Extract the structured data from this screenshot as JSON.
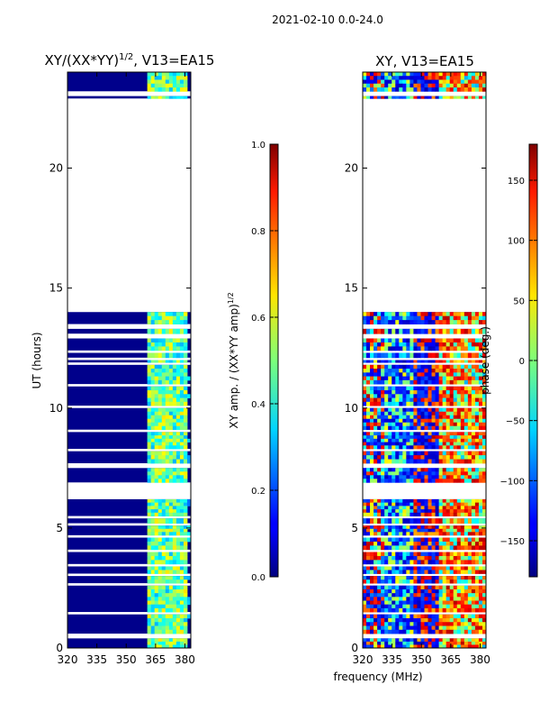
{
  "figure_title": "2021-02-10 0.0-24.0",
  "shared_xlabel": "frequency (MHz)",
  "chart_data": [
    {
      "type": "heatmap",
      "title": "XY/(XX*YY)",
      "title_superscript": "1/2",
      "title_suffix": ", V13=EA15",
      "xlabel": "",
      "ylabel": "UT (hours)",
      "xlim": [
        320,
        383
      ],
      "ylim": [
        0,
        24
      ],
      "x_ticks": [
        320,
        335,
        350,
        365,
        380
      ],
      "y_ticks": [
        0,
        5,
        10,
        15,
        20
      ],
      "colorbar": {
        "label": "XY amp. / (XX*YY amp)",
        "label_superscript": "1/2",
        "range": [
          0.0,
          1.0
        ],
        "ticks": [
          "0.0",
          "0.2",
          "0.4",
          "0.6",
          "0.8",
          "1.0"
        ]
      },
      "data_bands_hours": [
        [
          0.0,
          0.4
        ],
        [
          0.6,
          1.4
        ],
        [
          1.5,
          2.6
        ],
        [
          2.7,
          3.0
        ],
        [
          3.1,
          3.4
        ],
        [
          3.5,
          4.0
        ],
        [
          4.1,
          4.6
        ],
        [
          4.7,
          5.1
        ],
        [
          5.2,
          5.4
        ],
        [
          5.5,
          6.2
        ],
        [
          6.9,
          7.5
        ],
        [
          7.7,
          8.2
        ],
        [
          8.3,
          9.0
        ],
        [
          9.1,
          10.0
        ],
        [
          10.1,
          10.9
        ],
        [
          11.0,
          11.8
        ],
        [
          11.9,
          12.0
        ],
        [
          12.1,
          12.3
        ],
        [
          12.4,
          12.9
        ],
        [
          13.1,
          13.3
        ],
        [
          13.5,
          14.0
        ],
        [
          22.9,
          23.0
        ],
        [
          23.2,
          24.0
        ]
      ],
      "bright_channels_mhz": [
        [
          362,
          365
        ],
        [
          366,
          369
        ],
        [
          370,
          373
        ],
        [
          374,
          377
        ],
        [
          378,
          380
        ]
      ]
    },
    {
      "type": "heatmap",
      "title": "XY, V13=EA15",
      "xlabel": "",
      "ylabel": "",
      "xlim": [
        320,
        383
      ],
      "ylim": [
        0,
        24
      ],
      "x_ticks": [
        320,
        335,
        350,
        365,
        380
      ],
      "y_ticks": [
        0,
        5,
        10,
        15,
        20
      ],
      "colorbar": {
        "label": "phase (deg.)",
        "range": [
          -180,
          180
        ],
        "ticks": [
          "−150",
          "−100",
          "−50",
          "0",
          "50",
          "100",
          "150"
        ]
      },
      "data_bands_hours": [
        [
          0.0,
          0.4
        ],
        [
          0.6,
          1.4
        ],
        [
          1.5,
          2.6
        ],
        [
          2.7,
          3.0
        ],
        [
          3.1,
          3.4
        ],
        [
          3.5,
          4.0
        ],
        [
          4.1,
          4.6
        ],
        [
          4.7,
          5.1
        ],
        [
          5.2,
          5.4
        ],
        [
          5.5,
          6.2
        ],
        [
          6.9,
          7.5
        ],
        [
          7.7,
          8.2
        ],
        [
          8.3,
          9.0
        ],
        [
          9.1,
          10.0
        ],
        [
          10.1,
          10.9
        ],
        [
          11.0,
          11.8
        ],
        [
          11.9,
          12.0
        ],
        [
          12.1,
          12.3
        ],
        [
          12.4,
          12.9
        ],
        [
          13.1,
          13.3
        ],
        [
          13.5,
          14.0
        ],
        [
          22.9,
          23.0
        ],
        [
          23.2,
          24.0
        ]
      ]
    }
  ]
}
